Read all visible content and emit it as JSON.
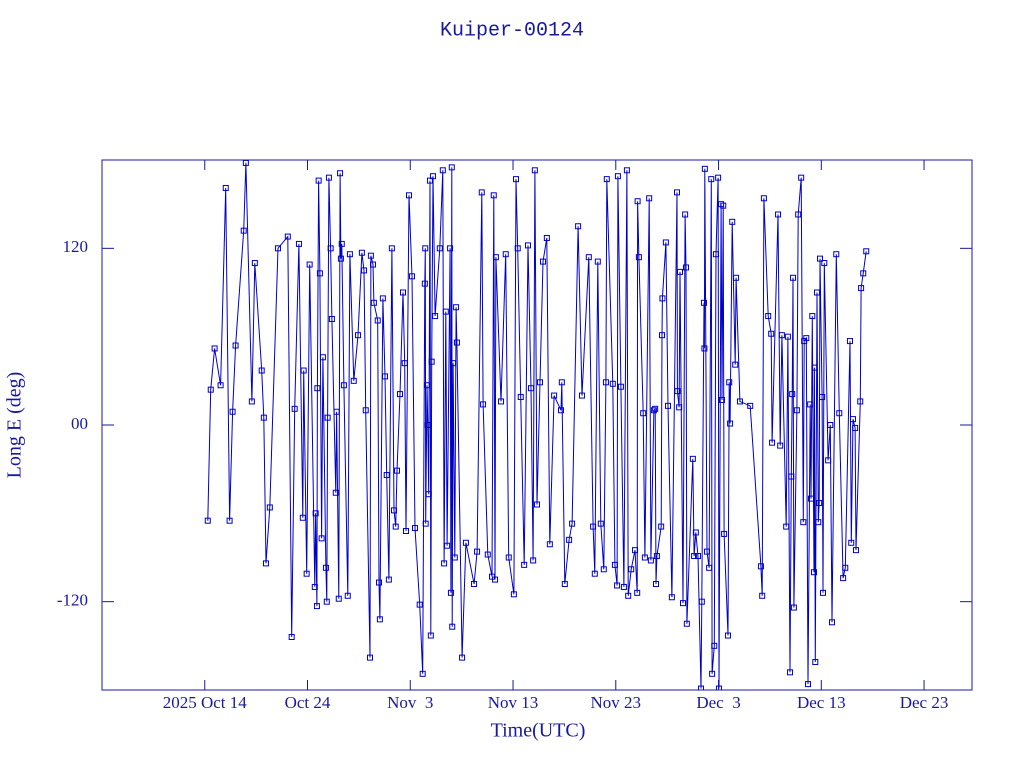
{
  "chart_data": {
    "type": "line",
    "title": "Kuiper-00124",
    "x_label": "Time(UTC)",
    "y_label": "Long E (deg)",
    "color": "#0000c8",
    "marker": "square",
    "xlim": [
      "2025-10-04T00:00",
      "2025-12-27T16:00"
    ],
    "xticks": [
      {
        "value": "2025-10-14",
        "label": "2025 Oct 14"
      },
      {
        "value": "2025-10-24",
        "label": "Oct 24"
      },
      {
        "value": "2025-11-03",
        "label": "Nov  3"
      },
      {
        "value": "2025-11-13",
        "label": "Nov 13"
      },
      {
        "value": "2025-11-23",
        "label": "Nov 23"
      },
      {
        "value": "2025-12-03",
        "label": "Dec  3"
      },
      {
        "value": "2025-12-13",
        "label": "Dec 13"
      },
      {
        "value": "2025-12-23",
        "label": "Dec 23"
      }
    ],
    "ylim": [
      -180,
      180
    ],
    "yticks": [
      -120,
      {
        "value": 0,
        "label": "00"
      },
      120
    ],
    "x": [
      "2025-10-14T07:00",
      "2025-10-14T14:00",
      "2025-10-14T23:00",
      "2025-10-15T13:00",
      "2025-10-16T01:00",
      "2025-10-16T10:00",
      "2025-10-16T17:00",
      "2025-10-17T00:00",
      "2025-10-17T19:00",
      "2025-10-18T00:00",
      "2025-10-18T14:00",
      "2025-10-18T21:00",
      "2025-10-19T13:00",
      "2025-10-19T18:00",
      "2025-10-19T23:00",
      "2025-10-20T08:00",
      "2025-10-21T03:00",
      "2025-10-22T02:00",
      "2025-10-22T11:00",
      "2025-10-22T18:00",
      "2025-10-23T04:00",
      "2025-10-23T13:00",
      "2025-10-23T15:00",
      "2025-10-23T22:00",
      "2025-10-24T05:00",
      "2025-10-24T17:00",
      "2025-10-24T19:00",
      "2025-10-24T22:00",
      "2025-10-24T23:00",
      "2025-10-25T02:00",
      "2025-10-25T05:00",
      "2025-10-25T09:00",
      "2025-10-25T12:00",
      "2025-10-25T19:00",
      "2025-10-25T21:00",
      "2025-10-25T23:00",
      "2025-10-26T02:00",
      "2025-10-26T06:00",
      "2025-10-26T09:00",
      "2025-10-26T18:00",
      "2025-10-26T20:00",
      "2025-10-27T01:00",
      "2025-10-27T04:00",
      "2025-10-27T06:00",
      "2025-10-27T08:00",
      "2025-10-27T13:00",
      "2025-10-27T22:00",
      "2025-10-28T03:00",
      "2025-10-28T12:00",
      "2025-10-28T22:00",
      "2025-10-29T07:00",
      "2025-10-29T12:00",
      "2025-10-29T16:00",
      "2025-10-30T02:00",
      "2025-10-30T04:00",
      "2025-10-30T09:00",
      "2025-10-30T11:00",
      "2025-10-30T20:00",
      "2025-10-30T23:00",
      "2025-10-31T01:00",
      "2025-10-31T08:00",
      "2025-10-31T13:00",
      "2025-10-31T17:00",
      "2025-10-31T22:00",
      "2025-11-01T05:00",
      "2025-11-01T10:00",
      "2025-11-01T14:00",
      "2025-11-01T17:00",
      "2025-11-02T00:00",
      "2025-11-02T07:00",
      "2025-11-02T11:00",
      "2025-11-02T14:00",
      "2025-11-02T21:00",
      "2025-11-03T04:00",
      "2025-11-03T11:00",
      "2025-11-03T22:00",
      "2025-11-04T05:00",
      "2025-11-04T10:00",
      "2025-11-04T11:00",
      "2025-11-04T12:00",
      "2025-11-04T15:00",
      "2025-11-04T17:00",
      "2025-11-04T19:00",
      "2025-11-04T22:00",
      "2025-11-05T00:00",
      "2025-11-05T02:00",
      "2025-11-05T05:00",
      "2025-11-05T10:00",
      "2025-11-05T21:00",
      "2025-11-06T04:00",
      "2025-11-06T07:00",
      "2025-11-06T11:00",
      "2025-11-06T14:00",
      "2025-11-06T21:00",
      "2025-11-06T23:00",
      "2025-11-07T01:00",
      "2025-11-07T02:00",
      "2025-11-07T04:00",
      "2025-11-07T08:00",
      "2025-11-07T11:00",
      "2025-11-07T13:00",
      "2025-11-08T01:00",
      "2025-11-08T10:00",
      "2025-11-09T05:00",
      "2025-11-09T12:00",
      "2025-11-09T23:00",
      "2025-11-10T02:00",
      "2025-11-10T13:00",
      "2025-11-10T23:00",
      "2025-11-11T03:00",
      "2025-11-11T06:00",
      "2025-11-11T08:00",
      "2025-11-11T20:00",
      "2025-11-12T07:00",
      "2025-11-12T14:00",
      "2025-11-13T02:00",
      "2025-11-13T07:00",
      "2025-11-13T11:00",
      "2025-11-13T18:00",
      "2025-11-14T02:00",
      "2025-11-14T11:00",
      "2025-11-14T18:00",
      "2025-11-14T23:00",
      "2025-11-15T03:00",
      "2025-11-15T08:00",
      "2025-11-15T15:00",
      "2025-11-15T22:00",
      "2025-11-16T07:00",
      "2025-11-16T14:00",
      "2025-11-17T00:00",
      "2025-11-17T16:00",
      "2025-11-17T18:00",
      "2025-11-18T01:00",
      "2025-11-18T11:00",
      "2025-11-18T18:00",
      "2025-11-19T08:00",
      "2025-11-19T17:00",
      "2025-11-20T09:00",
      "2025-11-20T19:00",
      "2025-11-20T23:00",
      "2025-11-21T06:00",
      "2025-11-21T13:00",
      "2025-11-21T20:00",
      "2025-11-22T01:00",
      "2025-11-22T03:00",
      "2025-11-22T17:00",
      "2025-11-22T22:00",
      "2025-11-23T03:00",
      "2025-11-23T05:00",
      "2025-11-23T12:00",
      "2025-11-23T19:00",
      "2025-11-24T02:00",
      "2025-11-24T05:00",
      "2025-11-24T12:00",
      "2025-11-24T21:00",
      "2025-11-25T02:00",
      "2025-11-25T03:00",
      "2025-11-25T06:00",
      "2025-11-25T16:00",
      "2025-11-25T20:00",
      "2025-11-26T06:00",
      "2025-11-26T10:00",
      "2025-11-26T17:00",
      "2025-11-26T20:00",
      "2025-11-26T22:00",
      "2025-11-27T00:00",
      "2025-11-27T10:00",
      "2025-11-27T12:00",
      "2025-11-27T13:00",
      "2025-11-27T21:00",
      "2025-11-28T02:00",
      "2025-11-28T11:00",
      "2025-11-28T23:00",
      "2025-11-29T00:00",
      "2025-11-29T04:00",
      "2025-11-29T06:00",
      "2025-11-29T13:00",
      "2025-11-29T18:00",
      "2025-11-29T20:00",
      "2025-11-29T22:00",
      "2025-11-30T12:00",
      "2025-11-30T15:00",
      "2025-11-30T19:00",
      "2025-12-01T00:00",
      "2025-12-01T07:00",
      "2025-12-01T09:00",
      "2025-12-01T14:00",
      "2025-12-01T15:00",
      "2025-12-01T16:00",
      "2025-12-01T21:00",
      "2025-12-02T02:00",
      "2025-12-02T07:00",
      "2025-12-02T09:00",
      "2025-12-02T14:00",
      "2025-12-02T18:00",
      "2025-12-02T23:00",
      "2025-12-03T01:00",
      "2025-12-03T06:00",
      "2025-12-03T08:00",
      "2025-12-03T11:00",
      "2025-12-03T13:00",
      "2025-12-03T22:00",
      "2025-12-04T01:00",
      "2025-12-04T03:00",
      "2025-12-04T08:00",
      "2025-12-04T15:00",
      "2025-12-04T17:00",
      "2025-12-05T02:00",
      "2025-12-06T02:00",
      "2025-12-07T03:00",
      "2025-12-07T06:00",
      "2025-12-07T10:00",
      "2025-12-07T20:00",
      "2025-12-08T03:00",
      "2025-12-08T05:00",
      "2025-12-08T19:00",
      "2025-12-09T00:00",
      "2025-12-09T04:00",
      "2025-12-09T14:00",
      "2025-12-09T18:00",
      "2025-12-09T23:00",
      "2025-12-10T02:00",
      "2025-12-10T04:00",
      "2025-12-10T06:00",
      "2025-12-10T08:00",
      "2025-12-10T15:00",
      "2025-12-10T18:00",
      "2025-12-11T01:00",
      "2025-12-11T06:00",
      "2025-12-11T08:00",
      "2025-12-11T13:00",
      "2025-12-11T17:00",
      "2025-12-11T22:00",
      "2025-12-12T00:00",
      "2025-12-12T03:00",
      "2025-12-12T07:00",
      "2025-12-12T08:00",
      "2025-12-12T10:00",
      "2025-12-12T14:00",
      "2025-12-12T17:00",
      "2025-12-12T19:00",
      "2025-12-12T21:00",
      "2025-12-13T02:00",
      "2025-12-13T04:00",
      "2025-12-13T07:00",
      "2025-12-13T16:00",
      "2025-12-13T21:00",
      "2025-12-14T01:00",
      "2025-12-14T11:00",
      "2025-12-14T18:00",
      "2025-12-15T03:00",
      "2025-12-15T08:00",
      "2025-12-15T19:00",
      "2025-12-15T22:00",
      "2025-12-16T02:00",
      "2025-12-16T07:00",
      "2025-12-16T09:00",
      "2025-12-16T19:00",
      "2025-12-16T21:00",
      "2025-12-17T02:00",
      "2025-12-17T09:00"
    ],
    "values": [
      -65,
      24,
      52,
      27,
      161,
      -65,
      9,
      54,
      132,
      178,
      16,
      110,
      37,
      5,
      -94,
      -56,
      120,
      128,
      -144,
      11,
      123,
      -63,
      37,
      -101,
      109,
      -110,
      -60,
      -123,
      25,
      166,
      103,
      -77,
      46,
      -97,
      -120,
      5,
      168,
      120,
      72,
      -46,
      9,
      -118,
      171,
      113,
      123,
      27,
      -116,
      116,
      30,
      61,
      117,
      105,
      10,
      -158,
      115,
      109,
      83,
      71,
      -107,
      -132,
      86,
      33,
      -34,
      -105,
      120,
      -58,
      -69,
      -31,
      21,
      90,
      42,
      -72,
      156,
      101,
      -70,
      -122,
      -169,
      96,
      120,
      -67,
      27,
      0,
      -47,
      166,
      -143,
      43,
      169,
      74,
      120,
      173,
      -94,
      77,
      -82,
      120,
      -114,
      175,
      -137,
      42,
      -90,
      80,
      56,
      -158,
      -80,
      -108,
      -86,
      158,
      14,
      -88,
      -103,
      156,
      -105,
      114,
      16,
      116,
      -90,
      -115,
      167,
      120,
      19,
      -95,
      122,
      25,
      -92,
      173,
      -54,
      29,
      111,
      127,
      -81,
      20,
      10,
      29,
      -108,
      -78,
      -67,
      135,
      20,
      114,
      -69,
      -101,
      111,
      -67,
      -98,
      29,
      167,
      28,
      -95,
      -109,
      169,
      26,
      -110,
      173,
      -116,
      -98,
      -85,
      -114,
      152,
      114,
      8,
      -90,
      154,
      -92,
      10,
      11,
      -108,
      -89,
      -69,
      61,
      86,
      124,
      13,
      -117,
      158,
      23,
      12,
      104,
      -121,
      143,
      107,
      -135,
      -23,
      -89,
      -73,
      -89,
      -179,
      -120,
      83,
      52,
      174,
      -86,
      -97,
      167,
      -169,
      -150,
      116,
      168,
      -179,
      150,
      17,
      149,
      -74,
      -143,
      29,
      1,
      138,
      41,
      100,
      16,
      13,
      -96,
      -116,
      154,
      74,
      62,
      -12,
      143,
      -14,
      61,
      -69,
      60,
      -168,
      -35,
      21,
      100,
      -124,
      10,
      143,
      168,
      -66,
      57,
      59,
      -176,
      14,
      -50,
      74,
      -100,
      39,
      -161,
      90,
      -66,
      -53,
      113,
      19,
      -114,
      110,
      -24,
      0,
      -134,
      116,
      8,
      -104,
      -97,
      57,
      -80,
      4,
      -2,
      -85,
      16,
      93,
      103,
      118
    ]
  }
}
